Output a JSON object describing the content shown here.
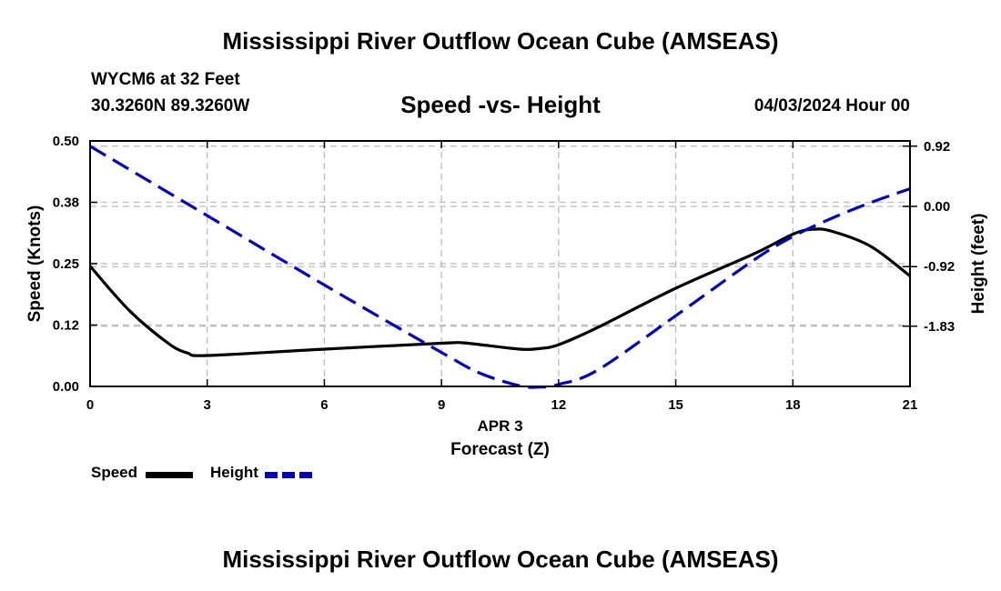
{
  "header": {
    "title": "Mississippi River Outflow Ocean Cube (AMSEAS)",
    "station": "WYCM6 at 32 Feet",
    "location": "30.3260N  89.3260W",
    "date": "04/03/2024 Hour 00"
  },
  "footer": {
    "title": "Mississippi River Outflow Ocean Cube (AMSEAS)"
  },
  "colors": {
    "speed": "#000000",
    "height": "#0000cc",
    "grid": "#bbbbbb"
  },
  "chart_data": {
    "type": "line",
    "title": "Speed -vs- Height",
    "xlabel": "Forecast (Z)",
    "xlabel_date": "APR 3",
    "ylabel": "Speed (Knots)",
    "y2label": "Height (feet)",
    "xlim": [
      0,
      21
    ],
    "ylim": [
      0,
      0.5
    ],
    "y2lim": [
      -2.75,
      1.0
    ],
    "x_ticks": [
      0,
      3,
      6,
      9,
      12,
      15,
      18,
      21
    ],
    "x_tick_labels": [
      "0",
      "3",
      "6",
      "9",
      "12",
      "15",
      "18",
      "21"
    ],
    "y_ticks": [
      0,
      0.125,
      0.25,
      0.375,
      0.5
    ],
    "y_tick_labels": [
      "0.00",
      "0.12",
      "0.25",
      "0.38",
      "0.50"
    ],
    "y2_ticks": [
      0.92,
      0.0,
      -0.92,
      -1.83
    ],
    "y2_tick_labels": [
      "0.92",
      "0.00",
      "-0.92",
      "-1.83"
    ],
    "grid": true,
    "series": [
      {
        "name": "Speed",
        "axis": "left",
        "style": "solid",
        "x": [
          0,
          1,
          2,
          2.5,
          3,
          6,
          9,
          9.5,
          10,
          11,
          11.5,
          12,
          13,
          15,
          17,
          18,
          18.5,
          19,
          20,
          21
        ],
        "values": [
          0.245,
          0.155,
          0.088,
          0.068,
          0.063,
          0.076,
          0.088,
          0.089,
          0.085,
          0.076,
          0.077,
          0.085,
          0.12,
          0.2,
          0.27,
          0.31,
          0.32,
          0.316,
          0.285,
          0.225
        ]
      },
      {
        "name": "Height",
        "axis": "right",
        "style": "dashed",
        "x": [
          0,
          3,
          6,
          9,
          10,
          11,
          11.5,
          12,
          13,
          15,
          17,
          18,
          19,
          20,
          21
        ],
        "values": [
          0.92,
          -0.14,
          -1.2,
          -2.23,
          -2.55,
          -2.74,
          -2.76,
          -2.72,
          -2.5,
          -1.67,
          -0.82,
          -0.46,
          -0.18,
          0.06,
          0.27
        ]
      }
    ]
  }
}
